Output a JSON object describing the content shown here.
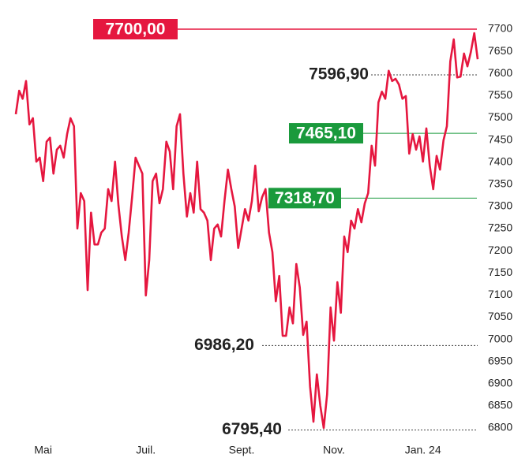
{
  "chart_data": {
    "type": "line",
    "categories": [
      null,
      null,
      null,
      null,
      null,
      null,
      null,
      null,
      "Mai",
      null,
      null,
      null,
      null,
      null,
      null,
      null,
      null,
      null,
      null,
      null,
      null,
      null,
      null,
      null,
      null,
      null,
      null,
      null,
      null,
      null,
      null,
      null,
      null,
      null,
      null,
      null,
      null,
      null,
      "Juil.",
      null,
      null,
      null,
      null,
      null,
      null,
      null,
      null,
      null,
      null,
      null,
      null,
      null,
      null,
      null,
      null,
      null,
      null,
      null,
      null,
      null,
      null,
      null,
      null,
      null,
      null,
      null,
      "Sept.",
      null,
      null,
      null,
      null,
      null,
      null,
      null,
      null,
      null,
      null,
      null,
      null,
      null,
      null,
      null,
      null,
      null,
      null,
      null,
      null,
      null,
      null,
      null,
      null,
      null,
      null,
      "Nov.",
      null,
      null,
      null,
      null,
      null,
      null,
      null,
      null,
      null,
      null,
      null,
      null,
      null,
      null,
      null,
      null,
      null,
      null,
      null,
      null,
      null,
      null,
      null,
      null,
      null,
      "Jan. 24",
      null,
      null,
      null,
      null,
      null,
      null,
      null,
      null,
      null,
      null,
      null,
      null,
      null,
      null,
      null,
      null
    ],
    "series": [
      {
        "color": "#e5173f",
        "values": [
          7508,
          7561,
          7543,
          7583,
          7485,
          7499,
          7401,
          7410,
          7357,
          7446,
          7455,
          7374,
          7428,
          7437,
          7410,
          7463,
          7499,
          7481,
          7250,
          7330,
          7312,
          7111,
          7286,
          7214,
          7214,
          7241,
          7250,
          7339,
          7312,
          7401,
          7303,
          7232,
          7179,
          7241,
          7321,
          7410,
          7392,
          7374,
          7099,
          7179,
          7357,
          7374,
          7307,
          7339,
          7446,
          7424,
          7339,
          7481,
          7508,
          7374,
          7277,
          7330,
          7286,
          7401,
          7294,
          7286,
          7268,
          7179,
          7250,
          7259,
          7232,
          7312,
          7383,
          7339,
          7300,
          7206,
          7250,
          7294,
          7268,
          7312,
          7392,
          7289,
          7321,
          7339,
          7241,
          7197,
          7086,
          7143,
          7008,
          7008,
          7072,
          7036,
          7170,
          7117,
          7010,
          7040,
          6894,
          6814,
          6921,
          6850,
          6800,
          6876,
          7072,
          6997,
          7129,
          7060,
          7232,
          7197,
          7268,
          7250,
          7294,
          7264,
          7307,
          7330,
          7437,
          7392,
          7535,
          7559,
          7543,
          7606,
          7583,
          7588,
          7575,
          7543,
          7549,
          7419,
          7463,
          7428,
          7458,
          7401,
          7476,
          7392,
          7339,
          7414,
          7383,
          7449,
          7481,
          7627,
          7677,
          7591,
          7593,
          7645,
          7616,
          7648,
          7691,
          7632
        ]
      }
    ],
    "ylim": [
      6800,
      7700
    ],
    "yticks": [
      6800,
      6850,
      6900,
      6950,
      7000,
      7050,
      7100,
      7150,
      7200,
      7250,
      7300,
      7350,
      7400,
      7450,
      7500,
      7550,
      7600,
      7650,
      7700
    ],
    "annotations": [
      {
        "value": 7700,
        "label": "7700,00",
        "color": "#e5173f",
        "style": "box"
      },
      {
        "value": 7596.9,
        "label": "7596,90",
        "color": "#222222",
        "style": "dotted"
      },
      {
        "value": 7465.1,
        "label": "7465,10",
        "color": "#1a9a3c",
        "style": "box"
      },
      {
        "value": 7318.7,
        "label": "7318,70",
        "color": "#1a9a3c",
        "style": "box"
      },
      {
        "value": 6986.2,
        "label": "6986,20",
        "color": "#222222",
        "style": "dotted"
      },
      {
        "value": 6795.4,
        "label": "6795,40",
        "color": "#222222",
        "style": "dotted"
      }
    ]
  }
}
